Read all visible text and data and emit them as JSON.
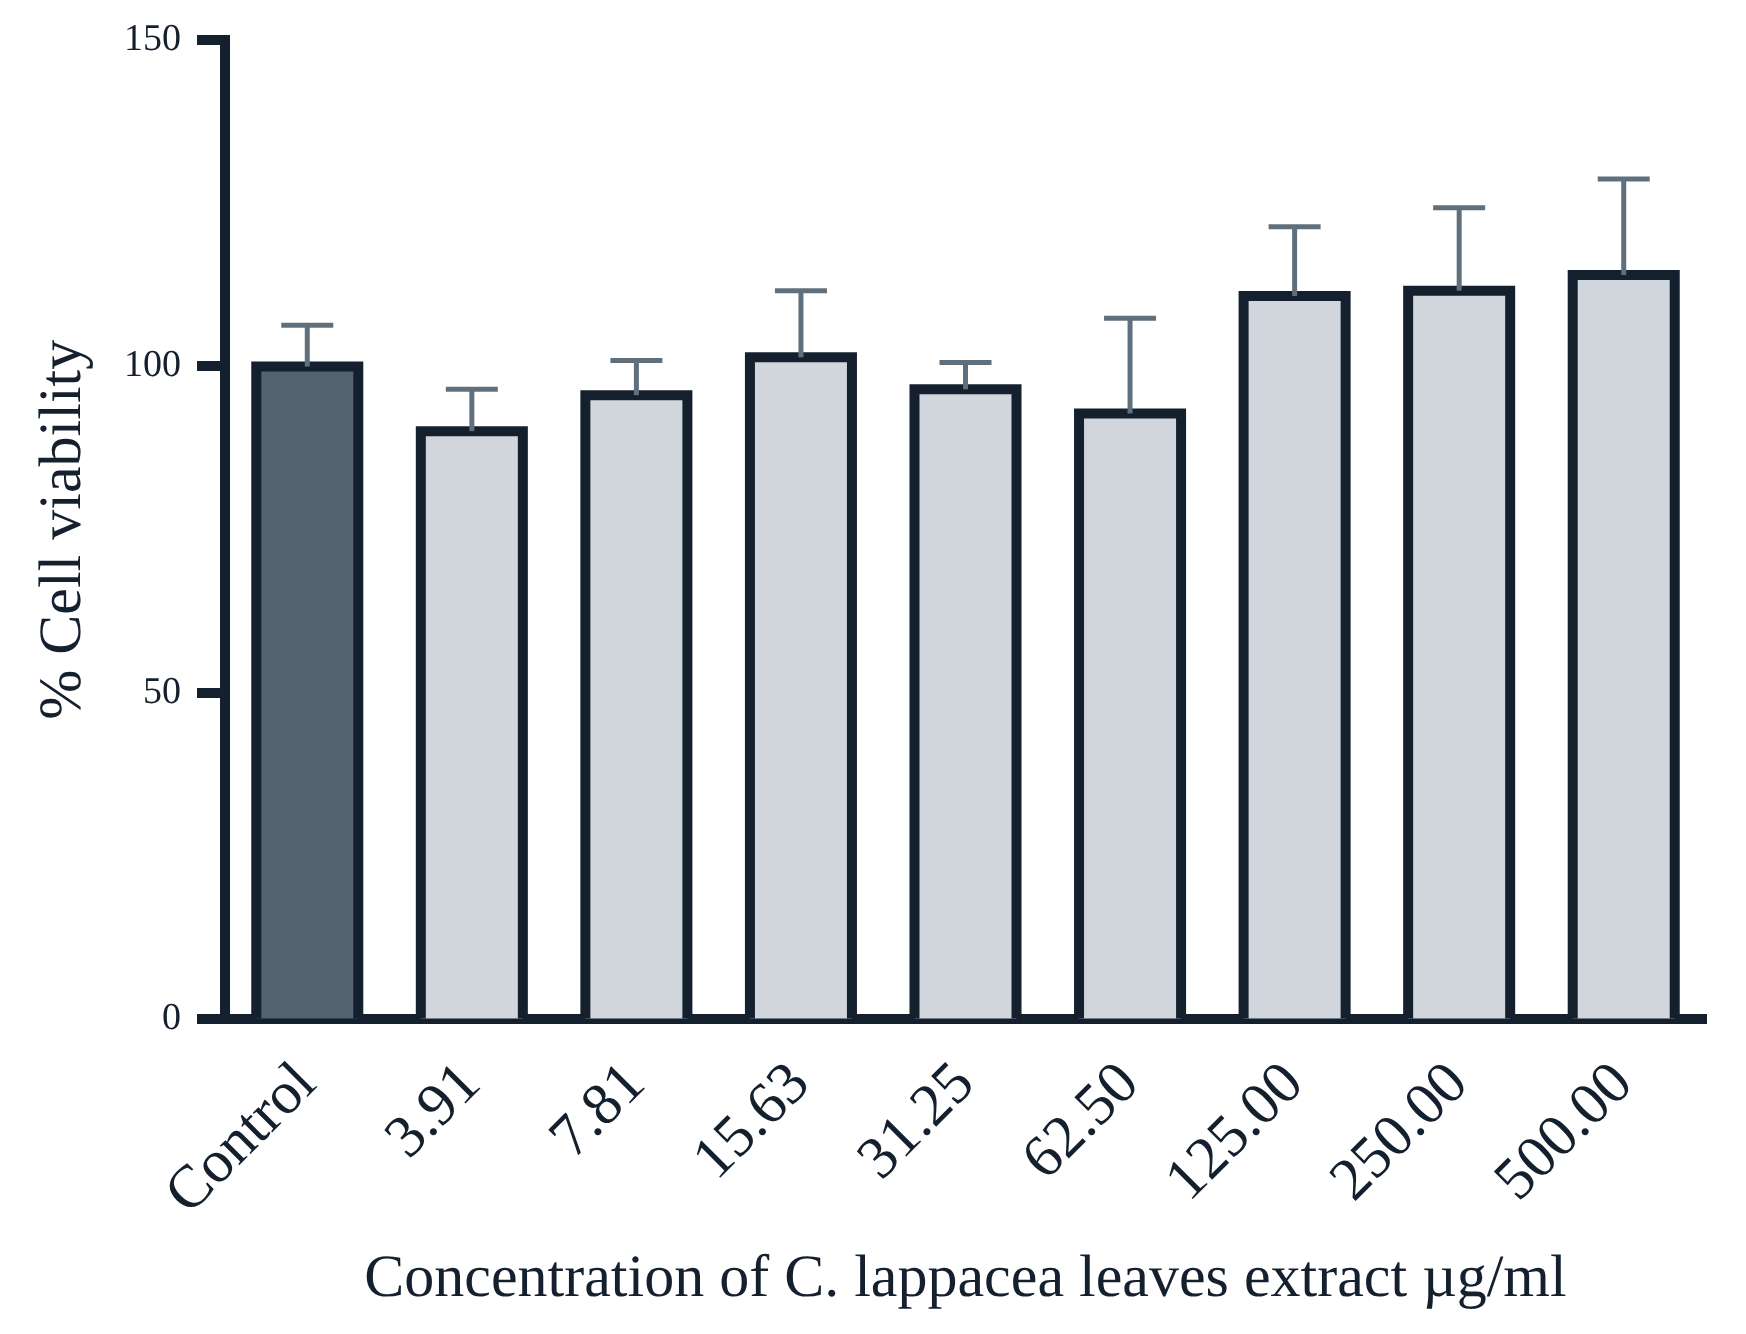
{
  "chart_data": {
    "type": "bar",
    "xlabel": "Concentration of C. lappacea leaves extract µg/ml",
    "ylabel": "% Cell viability",
    "categories": [
      "Control",
      "3.91",
      "7.81",
      "15.63",
      "31.25",
      "62.50",
      "125.00",
      "250.00",
      "500.00"
    ],
    "values": [
      100,
      90.1,
      95.6,
      101.4,
      96.5,
      92.8,
      110.8,
      111.6,
      114.0
    ],
    "colors": [
      "#536370",
      "#d0d6db",
      "#d0d6db",
      "#d0d6db",
      "#d0d6db",
      "#d0d6db",
      "#d0d6db",
      "#d0d6db",
      "#d0d6db"
    ],
    "errors": [
      [
        100,
        106.3
      ],
      [
        90.1,
        96.5
      ],
      [
        95.6,
        100.9
      ],
      [
        101.4,
        111.6
      ],
      [
        96.5,
        100.6
      ],
      [
        92.8,
        107.4
      ],
      [
        110.8,
        121.4
      ],
      [
        111.6,
        124.3
      ],
      [
        114.0,
        128.7
      ]
    ],
    "ylim": [
      0,
      150
    ],
    "yticks": [
      0,
      50,
      100,
      150
    ],
    "grid": false,
    "legend": false
  }
}
